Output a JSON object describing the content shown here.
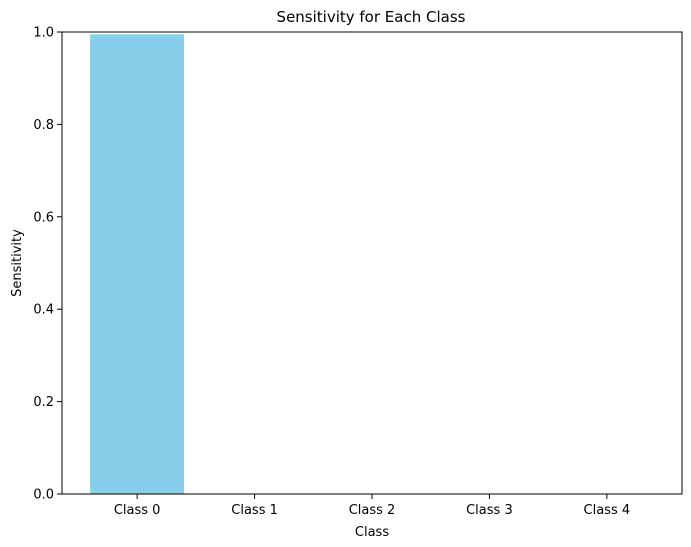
{
  "chart_data": {
    "type": "bar",
    "title": "Sensitivity for Each Class",
    "xlabel": "Class",
    "ylabel": "Sensitivity",
    "categories": [
      "Class 0",
      "Class 1",
      "Class 2",
      "Class 3",
      "Class 4"
    ],
    "values": [
      0.995,
      0,
      0,
      0,
      0
    ],
    "ylim": [
      0,
      1
    ],
    "yticks": [
      "0.0",
      "0.2",
      "0.4",
      "0.6",
      "0.8",
      "1.0"
    ],
    "bar_color": "#87ceeb",
    "grid": false,
    "legend": "none"
  }
}
